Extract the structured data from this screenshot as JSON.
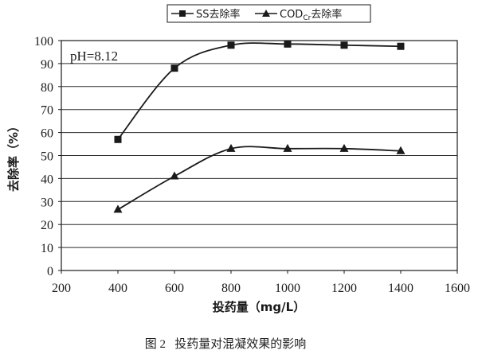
{
  "chart_data": {
    "type": "line",
    "xlabel": "投药量（mg/L）",
    "ylabel": "去除率（%）",
    "x_range": [
      200,
      1600
    ],
    "x_ticks": [
      200,
      400,
      600,
      800,
      1000,
      1200,
      1400,
      1600
    ],
    "ylim": [
      0,
      100
    ],
    "y_ticks": [
      0,
      10,
      20,
      30,
      40,
      50,
      60,
      70,
      80,
      90,
      100
    ],
    "grid": "horizontal",
    "legend_position": "top",
    "annotation": "pH=8.12",
    "caption": "图 2   投药量对混凝效果的影响",
    "series": [
      {
        "name": "SS去除率",
        "marker": "square",
        "x": [
          400,
          600,
          800,
          1000,
          1200,
          1400
        ],
        "y": [
          57,
          88,
          98,
          98.5,
          98,
          97.5
        ]
      },
      {
        "name_main": "COD",
        "name_sub": "Cr",
        "name_tail": "去除率",
        "marker": "triangle",
        "x": [
          400,
          600,
          800,
          1000,
          1200,
          1400
        ],
        "y": [
          26.5,
          41,
          53,
          53,
          53,
          52
        ]
      }
    ],
    "colors": {
      "ink": "#1a1a1a",
      "grid": "#2a2a2a",
      "plot_bg": "#ffffff"
    }
  }
}
